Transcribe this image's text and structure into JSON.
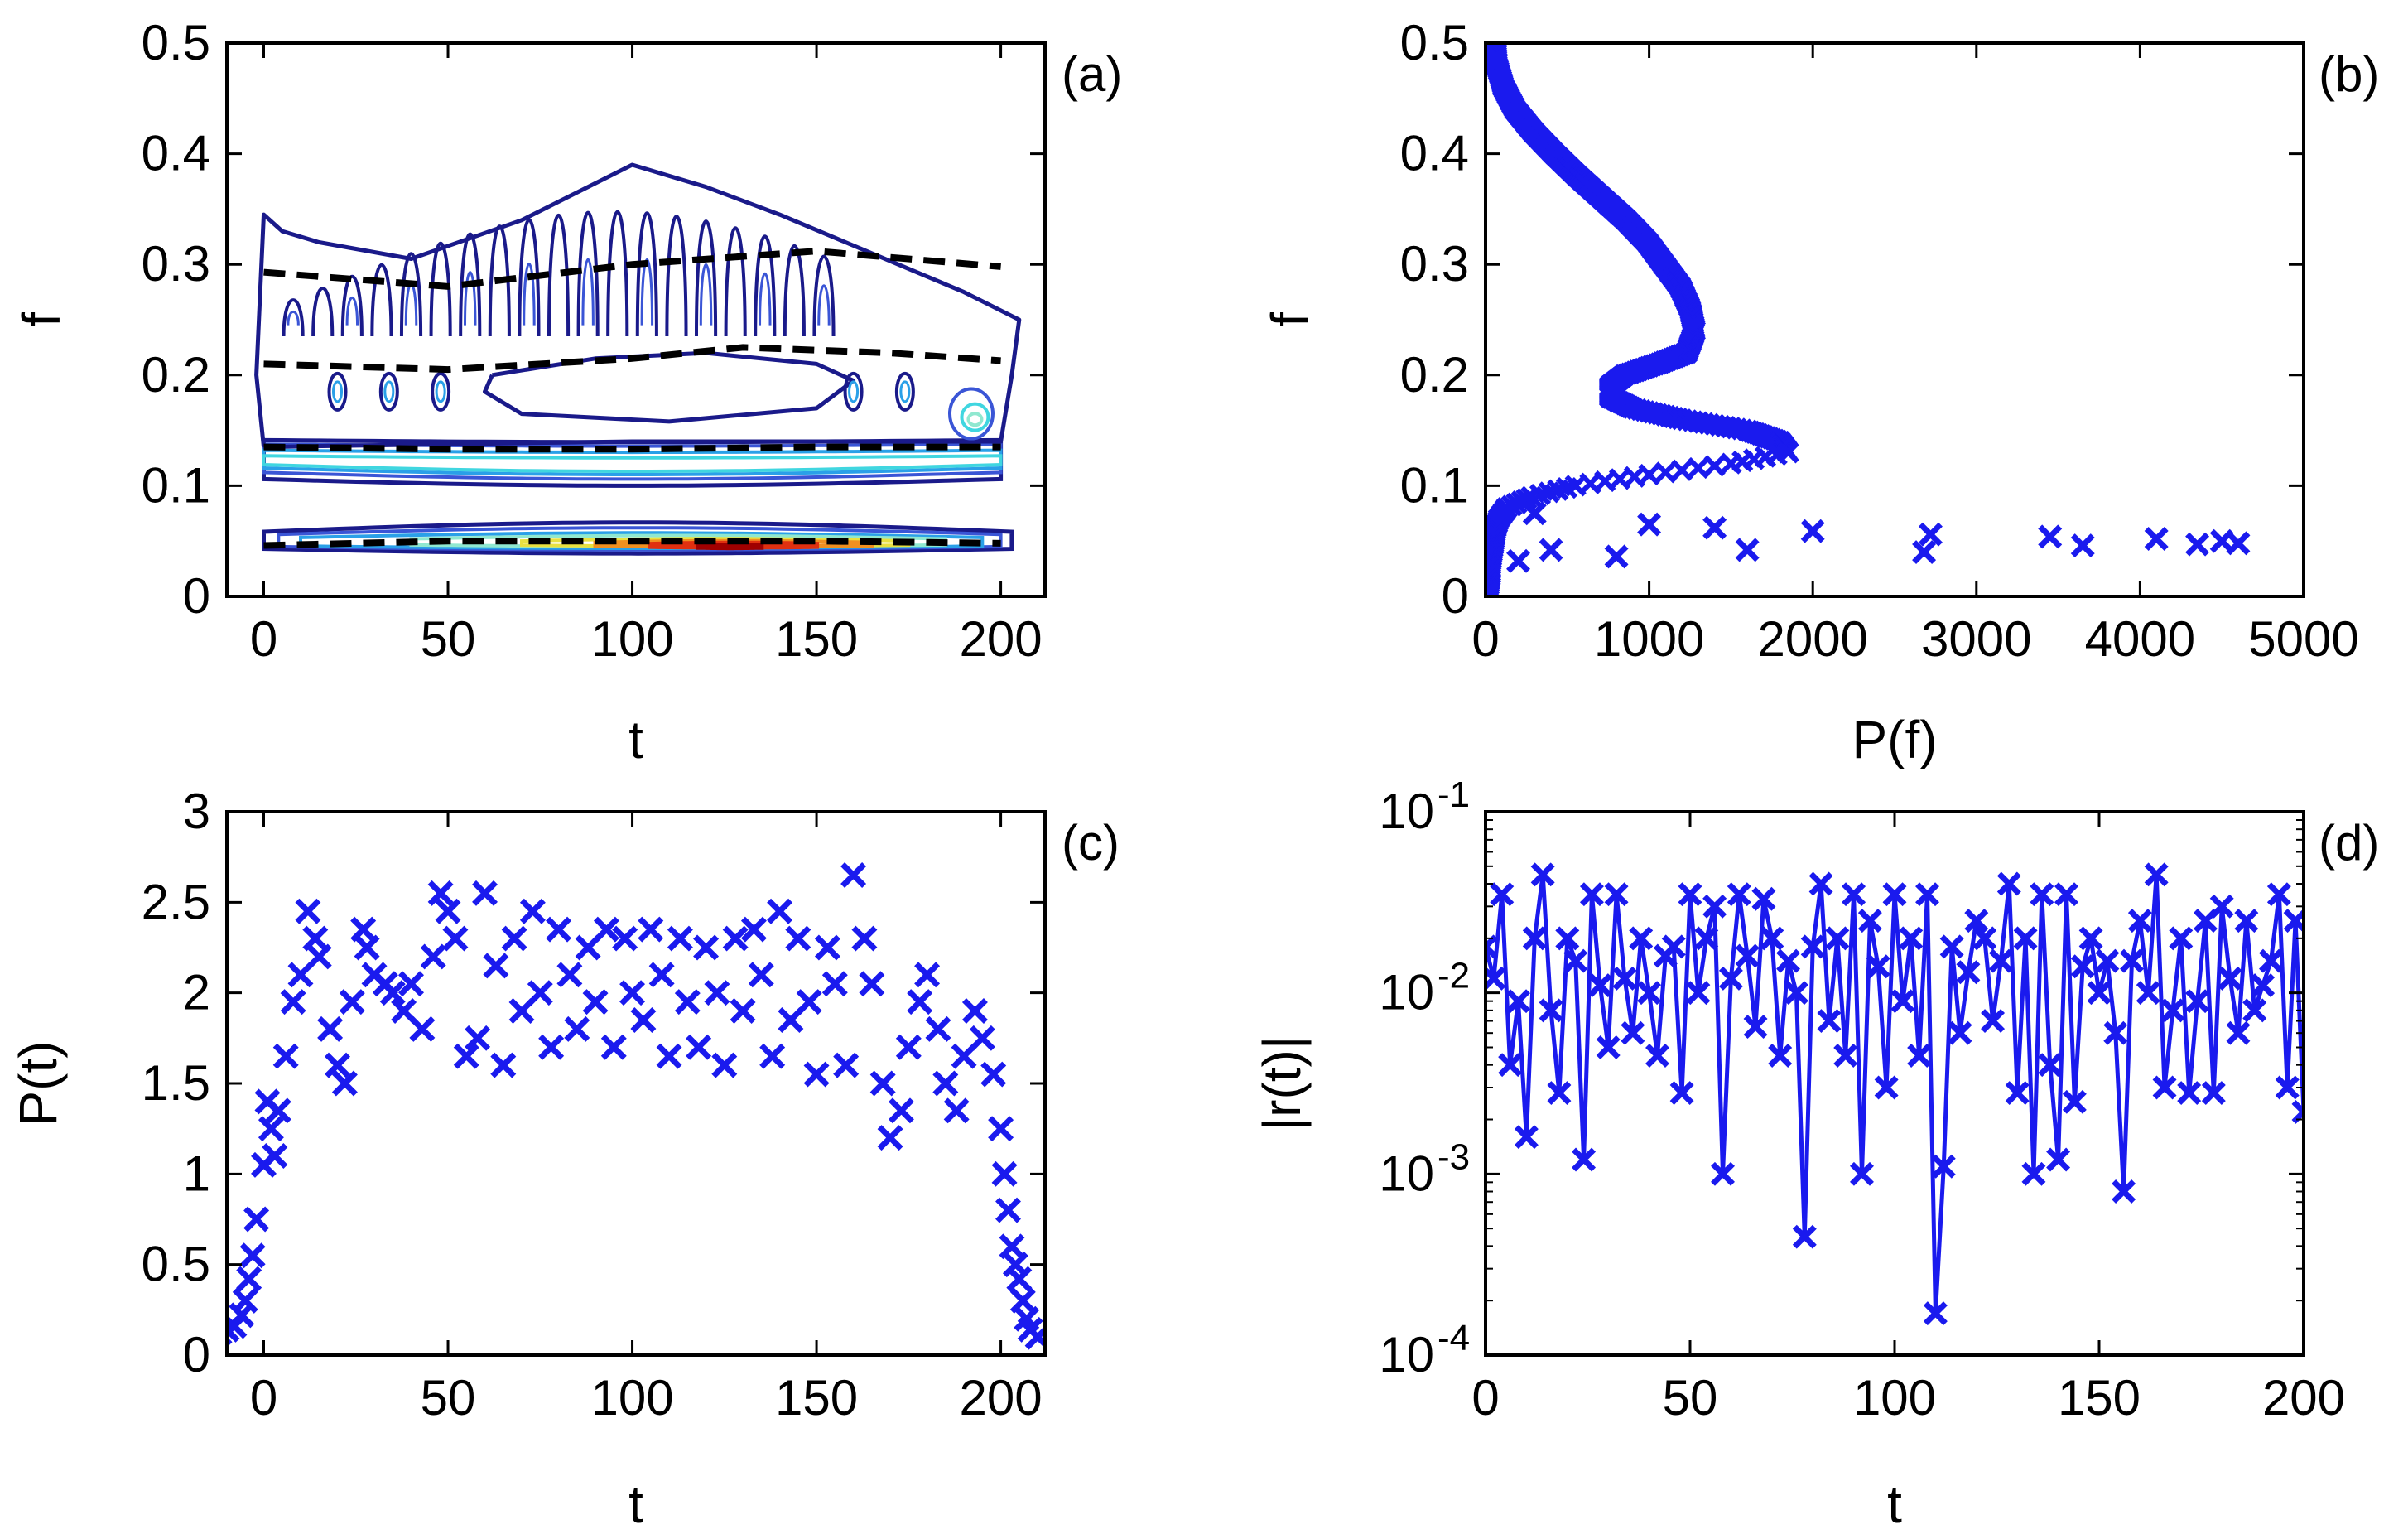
{
  "chart_data": [
    {
      "panel_label": "(a)",
      "type": "contour",
      "xlabel": "t",
      "ylabel": "f",
      "xlim": [
        -10,
        212
      ],
      "ylim": [
        0,
        0.5
      ],
      "xticks": [
        0,
        50,
        100,
        150,
        200
      ],
      "xtick_labels": [
        "0",
        "50",
        "100",
        "150",
        "200"
      ],
      "yticks": [
        0,
        0.1,
        0.2,
        0.3,
        0.4,
        0.5
      ],
      "ytick_labels": [
        "0",
        "0.1",
        "0.2",
        "0.3",
        "0.4",
        "0.5"
      ],
      "contour_colors": [
        "#1a1a8a",
        "#3a55d6",
        "#2aa0e8",
        "#40d6e0",
        "#90e8d0",
        "#e8e040",
        "#f09020",
        "#e03010",
        "#a00000"
      ],
      "ridge_lines": [
        {
          "x": [
            0,
            50,
            100,
            150,
            200
          ],
          "y": [
            0.293,
            0.28,
            0.3,
            0.312,
            0.298
          ]
        },
        {
          "x": [
            0,
            50,
            100,
            130,
            170,
            200
          ],
          "y": [
            0.21,
            0.205,
            0.215,
            0.225,
            0.22,
            0.213
          ]
        },
        {
          "x": [
            0,
            50,
            100,
            150,
            200
          ],
          "y": [
            0.135,
            0.133,
            0.133,
            0.135,
            0.135
          ]
        },
        {
          "x": [
            0,
            50,
            100,
            150,
            200
          ],
          "y": [
            0.046,
            0.05,
            0.05,
            0.05,
            0.048
          ]
        }
      ]
    },
    {
      "panel_label": "(b)",
      "type": "scatter",
      "xlabel": "P(f)",
      "ylabel": "f",
      "xlim": [
        0,
        5000
      ],
      "ylim": [
        0,
        0.5
      ],
      "xticks": [
        0,
        1000,
        2000,
        3000,
        4000,
        5000
      ],
      "xtick_labels": [
        "0",
        "1000",
        "2000",
        "3000",
        "4000",
        "5000"
      ],
      "yticks": [
        0,
        0.1,
        0.2,
        0.3,
        0.4,
        0.5
      ],
      "ytick_labels": [
        "0",
        "0.1",
        "0.2",
        "0.3",
        "0.4",
        "0.5"
      ],
      "marker_color": "#1a1aee",
      "curve_points": {
        "f": [
          0.5,
          0.48,
          0.46,
          0.44,
          0.42,
          0.4,
          0.38,
          0.36,
          0.34,
          0.32,
          0.3,
          0.28,
          0.26,
          0.24,
          0.22,
          0.21,
          0.2,
          0.19,
          0.18,
          0.17,
          0.16,
          0.15,
          0.14,
          0.13,
          0.12,
          0.11,
          0.1,
          0.09,
          0.08,
          0.07,
          0.06,
          0.05,
          0.04,
          0.03,
          0.02,
          0.01,
          0.0
        ],
        "P": [
          60,
          70,
          110,
          180,
          290,
          420,
          560,
          710,
          860,
          990,
          1090,
          1190,
          1250,
          1280,
          1230,
          1050,
          850,
          760,
          760,
          900,
          1200,
          1600,
          1800,
          1850,
          1500,
          1000,
          550,
          280,
          130,
          80,
          60,
          50,
          40,
          30,
          30,
          20,
          10
        ]
      },
      "scatter_points": {
        "P": [
          2000,
          2680,
          2720,
          3450,
          3650,
          4100,
          4350,
          4500,
          4600,
          1400,
          1600,
          1000,
          800,
          400,
          200,
          300
        ],
        "f": [
          0.059,
          0.04,
          0.056,
          0.054,
          0.046,
          0.052,
          0.047,
          0.05,
          0.048,
          0.062,
          0.042,
          0.065,
          0.036,
          0.042,
          0.032,
          0.075
        ]
      }
    },
    {
      "panel_label": "(c)",
      "type": "scatter",
      "xlabel": "t",
      "ylabel": "P(t)",
      "xlim": [
        -10,
        212
      ],
      "ylim": [
        0,
        3
      ],
      "xticks": [
        0,
        50,
        100,
        150,
        200
      ],
      "xtick_labels": [
        "0",
        "50",
        "100",
        "150",
        "200"
      ],
      "yticks": [
        0,
        0.5,
        1,
        1.5,
        2,
        2.5,
        3
      ],
      "ytick_labels": [
        "0",
        "0.5",
        "1",
        "1.5",
        "2",
        "2.5",
        "3"
      ],
      "marker_color": "#1a1aee",
      "x": [
        -12,
        -10,
        -8,
        -6,
        -5,
        -4,
        -3,
        -2,
        0,
        1,
        2,
        3,
        4,
        6,
        8,
        10,
        12,
        14,
        15,
        18,
        20,
        22,
        24,
        27,
        28,
        30,
        33,
        35,
        38,
        40,
        43,
        46,
        48,
        50,
        52,
        55,
        58,
        60,
        63,
        65,
        68,
        70,
        73,
        75,
        78,
        80,
        83,
        85,
        88,
        90,
        93,
        95,
        98,
        100,
        103,
        105,
        108,
        110,
        113,
        115,
        118,
        120,
        123,
        125,
        128,
        130,
        133,
        135,
        138,
        140,
        143,
        145,
        148,
        150,
        153,
        155,
        158,
        160,
        163,
        165,
        168,
        170,
        173,
        175,
        178,
        180,
        183,
        185,
        188,
        190,
        193,
        195,
        198,
        200,
        201,
        202,
        203,
        204,
        205,
        206,
        207,
        208,
        210
      ],
      "y": [
        0.12,
        0.14,
        0.16,
        0.22,
        0.3,
        0.42,
        0.55,
        0.75,
        1.05,
        1.4,
        1.25,
        1.1,
        1.35,
        1.65,
        1.95,
        2.1,
        2.45,
        2.3,
        2.2,
        1.8,
        1.6,
        1.5,
        1.95,
        2.35,
        2.25,
        2.1,
        2.05,
        2.0,
        1.9,
        2.05,
        1.8,
        2.2,
        2.55,
        2.45,
        2.3,
        1.65,
        1.75,
        2.55,
        2.15,
        1.6,
        2.3,
        1.9,
        2.45,
        2.0,
        1.7,
        2.35,
        2.1,
        1.8,
        2.25,
        1.95,
        2.35,
        1.7,
        2.3,
        2.0,
        1.85,
        2.35,
        2.1,
        1.65,
        2.3,
        1.95,
        1.7,
        2.25,
        2.0,
        1.6,
        2.3,
        1.9,
        2.35,
        2.1,
        1.65,
        2.45,
        1.85,
        2.3,
        1.95,
        1.55,
        2.25,
        2.05,
        1.6,
        2.65,
        2.3,
        2.05,
        1.5,
        1.2,
        1.35,
        1.7,
        1.95,
        2.1,
        1.8,
        1.5,
        1.35,
        1.65,
        1.9,
        1.75,
        1.55,
        1.25,
        1.0,
        0.8,
        0.6,
        0.5,
        0.42,
        0.3,
        0.2,
        0.14,
        0.1
      ]
    },
    {
      "panel_label": "(d)",
      "type": "line",
      "xlabel": "t",
      "ylabel": "|r(t)|",
      "xlim": [
        0,
        200
      ],
      "ylim": [
        0.0001,
        0.1
      ],
      "yscale": "log",
      "xticks": [
        0,
        50,
        100,
        150,
        200
      ],
      "xtick_labels": [
        "0",
        "50",
        "100",
        "150",
        "200"
      ],
      "yticks": [
        0.0001,
        0.001,
        0.01,
        0.1
      ],
      "ytick_base": "10",
      "ytick_exponents": [
        "-4",
        "-3",
        "-2",
        "-1"
      ],
      "line_color": "#1a1aee",
      "marker": "x",
      "x": [
        0,
        2,
        4,
        6,
        8,
        10,
        12,
        14,
        16,
        18,
        20,
        22,
        24,
        26,
        28,
        30,
        32,
        34,
        36,
        38,
        40,
        42,
        44,
        46,
        48,
        50,
        52,
        54,
        56,
        58,
        60,
        62,
        64,
        66,
        68,
        70,
        72,
        74,
        76,
        78,
        80,
        82,
        84,
        86,
        88,
        90,
        92,
        94,
        96,
        98,
        100,
        102,
        104,
        106,
        108,
        110,
        112,
        114,
        116,
        118,
        120,
        122,
        124,
        126,
        128,
        130,
        132,
        134,
        136,
        138,
        140,
        142,
        144,
        146,
        148,
        150,
        152,
        154,
        156,
        158,
        160,
        162,
        164,
        166,
        168,
        170,
        172,
        174,
        176,
        178,
        180,
        182,
        184,
        186,
        188,
        190,
        192,
        194,
        196,
        198,
        200
      ],
      "y": [
        0.018,
        0.012,
        0.035,
        0.004,
        0.009,
        0.0016,
        0.02,
        0.045,
        0.008,
        0.0028,
        0.02,
        0.015,
        0.0012,
        0.035,
        0.011,
        0.005,
        0.035,
        0.012,
        0.006,
        0.02,
        0.01,
        0.0045,
        0.016,
        0.018,
        0.0028,
        0.035,
        0.01,
        0.02,
        0.03,
        0.001,
        0.012,
        0.035,
        0.016,
        0.0065,
        0.033,
        0.02,
        0.0045,
        0.015,
        0.01,
        0.00045,
        0.018,
        0.04,
        0.007,
        0.02,
        0.0045,
        0.035,
        0.001,
        0.025,
        0.014,
        0.003,
        0.035,
        0.009,
        0.02,
        0.0045,
        0.035,
        0.00017,
        0.0011,
        0.018,
        0.006,
        0.013,
        0.025,
        0.02,
        0.007,
        0.015,
        0.04,
        0.0028,
        0.02,
        0.001,
        0.035,
        0.004,
        0.0012,
        0.035,
        0.0025,
        0.014,
        0.02,
        0.01,
        0.015,
        0.006,
        0.0008,
        0.015,
        0.025,
        0.01,
        0.045,
        0.003,
        0.008,
        0.02,
        0.0028,
        0.009,
        0.025,
        0.0028,
        0.03,
        0.012,
        0.006,
        0.025,
        0.008,
        0.011,
        0.015,
        0.035,
        0.003,
        0.025,
        0.0022
      ]
    }
  ]
}
